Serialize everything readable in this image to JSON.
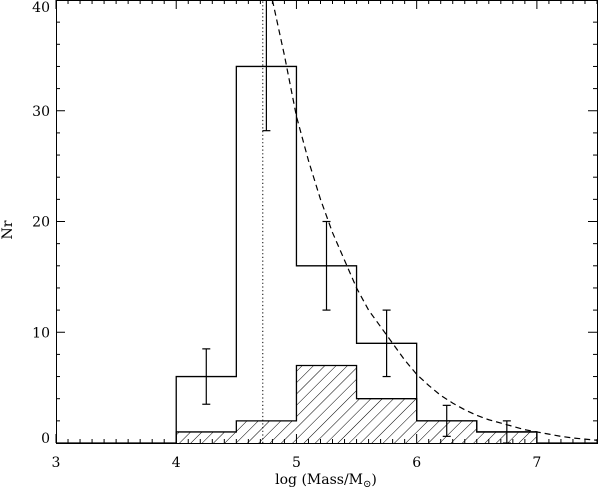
{
  "chart_data": {
    "type": "histogram",
    "xlabel": "log (Mass/M",
    "xlabel_subscript": "⊙",
    "xlabel_suffix": ")",
    "ylabel": "Nr",
    "xlim": [
      3,
      7.5
    ],
    "ylim": [
      0,
      40
    ],
    "x_ticks": [
      3,
      4,
      5,
      6,
      7
    ],
    "y_ticks": [
      0,
      10,
      20,
      30,
      40
    ],
    "x_tick_labels": [
      "3",
      "4",
      "5",
      "6",
      "7"
    ],
    "y_tick_labels": [
      "0",
      "10",
      "20",
      "30",
      "40"
    ],
    "minor_x_step": 0.1,
    "minor_y_step": 2,
    "bin_edges": [
      4.0,
      4.5,
      5.0,
      5.5,
      6.0,
      6.5,
      7.0
    ],
    "series": [
      {
        "style": "open-histogram",
        "values": [
          6,
          34,
          16,
          9,
          2,
          1
        ]
      },
      {
        "style": "hatched-histogram",
        "values": [
          1,
          2,
          7,
          4,
          2,
          1
        ]
      }
    ],
    "error_bars": [
      {
        "x": 4.25,
        "y": 6,
        "low": 3.5,
        "high": 8.5
      },
      {
        "x": 4.75,
        "y": 34,
        "low": 28.2,
        "high": 40
      },
      {
        "x": 5.25,
        "y": 16,
        "low": 12,
        "high": 20
      },
      {
        "x": 5.75,
        "y": 9,
        "low": 6,
        "high": 12
      },
      {
        "x": 6.25,
        "y": 2,
        "low": 0.6,
        "high": 3.4
      },
      {
        "x": 6.75,
        "y": 1,
        "low": 0,
        "high": 2
      }
    ],
    "vertical_line": {
      "x": 4.72,
      "style": "dotted"
    },
    "fit_curve": {
      "style": "dashed",
      "points": [
        [
          4.8,
          40
        ],
        [
          4.9,
          35
        ],
        [
          5.0,
          29.5
        ],
        [
          5.1,
          25.5
        ],
        [
          5.2,
          22
        ],
        [
          5.3,
          19
        ],
        [
          5.4,
          16.5
        ],
        [
          5.5,
          14
        ],
        [
          5.6,
          12
        ],
        [
          5.7,
          10.5
        ],
        [
          5.8,
          9
        ],
        [
          5.9,
          7.5
        ],
        [
          6.0,
          6.2
        ],
        [
          6.1,
          5.2
        ],
        [
          6.2,
          4.3
        ],
        [
          6.3,
          3.6
        ],
        [
          6.4,
          3.0
        ],
        [
          6.5,
          2.5
        ],
        [
          6.6,
          2.1
        ],
        [
          6.7,
          1.8
        ],
        [
          6.8,
          1.5
        ],
        [
          6.9,
          1.2
        ],
        [
          7.0,
          1.0
        ],
        [
          7.1,
          0.8
        ],
        [
          7.2,
          0.6
        ],
        [
          7.3,
          0.45
        ],
        [
          7.4,
          0.35
        ],
        [
          7.5,
          0.25
        ]
      ]
    },
    "grid": false
  }
}
